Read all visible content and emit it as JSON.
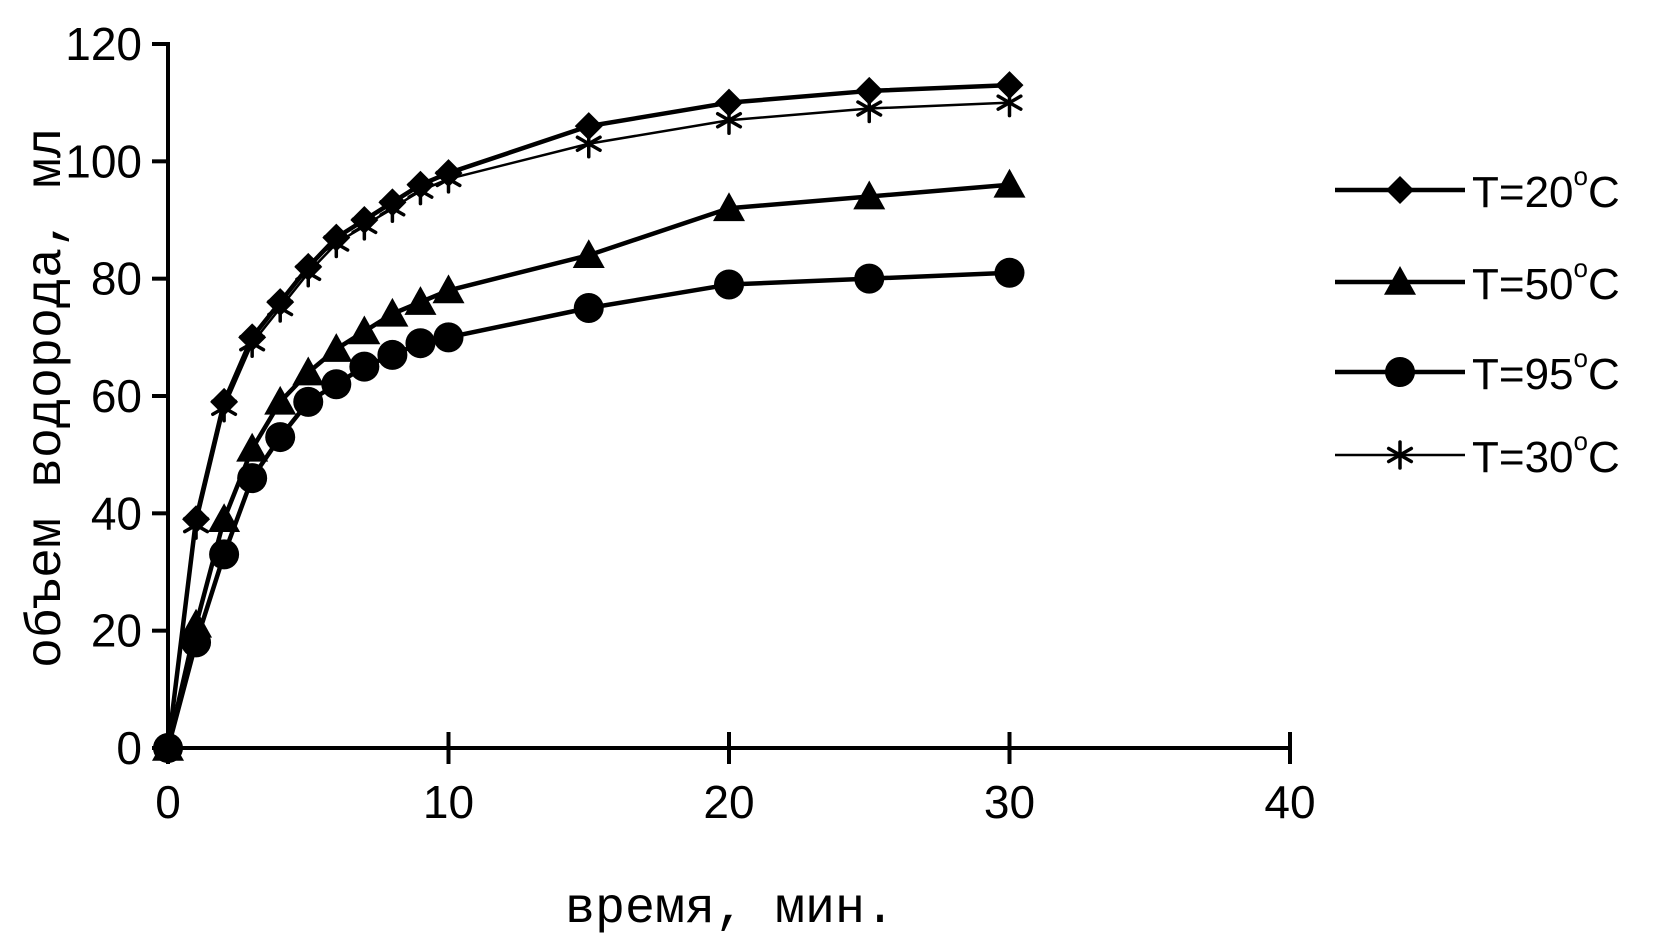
{
  "chart_data": {
    "type": "line",
    "xlabel": "время, мин.",
    "ylabel": "объем водорода, мл",
    "xlim": [
      0,
      40
    ],
    "ylim": [
      0,
      120
    ],
    "x_ticks": [
      "0",
      "10",
      "20",
      "30",
      "40"
    ],
    "y_ticks": [
      "0",
      "20",
      "40",
      "60",
      "80",
      "100",
      "120"
    ],
    "grid": false,
    "legend_position": "right",
    "series": [
      {
        "name": "T=20°C",
        "label_main": "T=20",
        "label_sup": "o",
        "label_end": "C",
        "marker": "diamond",
        "line_style": "solid",
        "x": [
          0,
          1,
          2,
          3,
          4,
          5,
          6,
          7,
          8,
          9,
          10,
          15,
          20,
          25,
          30
        ],
        "y": [
          0,
          39,
          59,
          70,
          76,
          82,
          87,
          90,
          93,
          96,
          98,
          106,
          110,
          112,
          113
        ]
      },
      {
        "name": "T=50°C",
        "label_main": "T=50",
        "label_sup": "o",
        "label_end": "C",
        "marker": "triangle",
        "line_style": "solid",
        "x": [
          0,
          1,
          2,
          3,
          4,
          5,
          6,
          7,
          8,
          9,
          10,
          15,
          20,
          25,
          30
        ],
        "y": [
          0,
          21,
          39,
          51,
          59,
          64,
          68,
          71,
          74,
          76,
          78,
          84,
          92,
          94,
          96
        ]
      },
      {
        "name": "T=95°C",
        "label_main": "T=95",
        "label_sup": "o",
        "label_end": "C",
        "marker": "circle",
        "line_style": "solid",
        "x": [
          0,
          1,
          2,
          3,
          4,
          5,
          6,
          7,
          8,
          9,
          10,
          15,
          20,
          25,
          30
        ],
        "y": [
          0,
          18,
          33,
          46,
          53,
          59,
          62,
          65,
          67,
          69,
          70,
          75,
          79,
          80,
          81
        ]
      },
      {
        "name": "T=30°C",
        "label_main": "T=30",
        "label_sup": "o",
        "label_end": "C",
        "marker": "asterisk",
        "line_style": "thin",
        "x": [
          0,
          1,
          2,
          3,
          4,
          5,
          6,
          7,
          8,
          9,
          10,
          15,
          20,
          25,
          30
        ],
        "y": [
          0,
          38,
          58,
          69,
          75,
          81,
          86,
          89,
          92,
          95,
          97,
          103,
          107,
          109,
          110
        ]
      }
    ]
  }
}
